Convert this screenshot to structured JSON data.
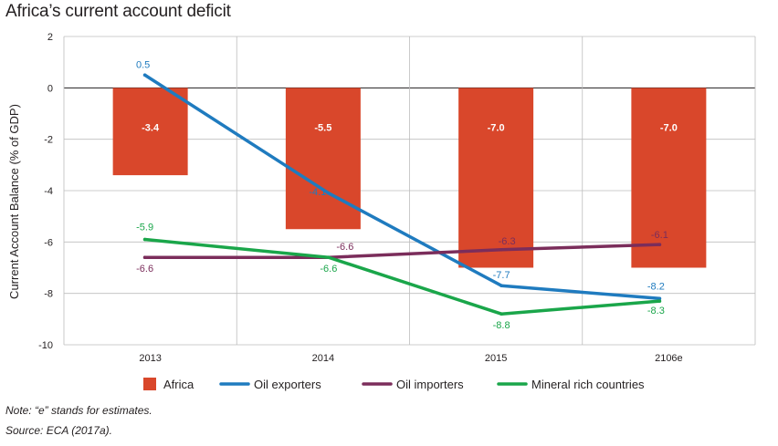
{
  "chart_data": {
    "type": "bar",
    "title": "Africa’s current account deficit",
    "ylabel": "Current Account Balance  (% of GDP)",
    "xlabel": "",
    "categories": [
      "2013",
      "2014",
      "2015",
      "2106e"
    ],
    "ylim": [
      -10,
      2
    ],
    "yticks": [
      2,
      0,
      -2,
      -4,
      -6,
      -8,
      -10
    ],
    "ytick_labels": [
      "2",
      "0",
      "-2",
      "-4",
      "-6",
      "-8",
      "-10"
    ],
    "grid": true,
    "legend_position": "bottom",
    "series": [
      {
        "name": "Africa",
        "type": "bar",
        "color": "#d9472b",
        "values": [
          -3.4,
          -5.5,
          -7.0,
          -7.0
        ],
        "labels": [
          "-3.4",
          "-5.5",
          "-7.0",
          "-7.0"
        ]
      },
      {
        "name": "Oil exporters",
        "type": "line",
        "color": "#1f7bbf",
        "values": [
          0.5,
          -4.1,
          -7.7,
          -8.2
        ],
        "labels": [
          "0.5",
          "-4.1",
          "-7.7",
          "-8.2"
        ]
      },
      {
        "name": "Oil importers",
        "type": "line",
        "color": "#7b2d5b",
        "values": [
          -6.6,
          -6.6,
          -6.3,
          -6.1
        ],
        "labels": [
          "-6.6",
          "-6.6",
          "-6.3",
          "-6.1"
        ]
      },
      {
        "name": "Mineral rich countries",
        "type": "line",
        "color": "#1aa64a",
        "values": [
          -5.9,
          -6.6,
          -8.8,
          -8.3
        ],
        "labels": [
          "-5.9",
          "-6.6",
          "-8.8",
          "-8.3"
        ]
      }
    ]
  },
  "notes": {
    "note": "Note: “e” stands for estimates.",
    "source": "Source: ECA (2017a)."
  }
}
